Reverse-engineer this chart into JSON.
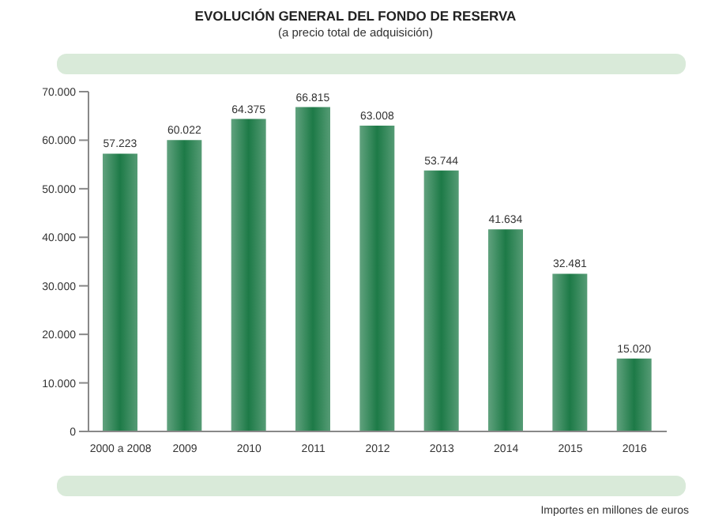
{
  "chart_data": {
    "type": "bar",
    "title": "EVOLUCIÓN GENERAL DEL FONDO DE RESERVA",
    "subtitle": "(a precio total de adquisición)",
    "categories": [
      "2000 a 2008",
      "2009",
      "2010",
      "2011",
      "2012",
      "2013",
      "2014",
      "2015",
      "2016"
    ],
    "values": [
      57223,
      60022,
      64375,
      66815,
      63008,
      53744,
      41634,
      32481,
      15020
    ],
    "value_labels": [
      "57.223",
      "60.022",
      "64.375",
      "66.815",
      "63.008",
      "53.744",
      "41.634",
      "32.481",
      "15.020"
    ],
    "color": "#1d7a47",
    "ylim": [
      0,
      70000
    ],
    "yticks": [
      {
        "value": 0,
        "label": "0"
      },
      {
        "value": 10000,
        "label": "10.000"
      },
      {
        "value": 20000,
        "label": "20.000"
      },
      {
        "value": 30000,
        "label": "30.000"
      },
      {
        "value": 40000,
        "label": "40.000"
      },
      {
        "value": 50000,
        "label": "50.000"
      },
      {
        "value": 60000,
        "label": "60.000"
      },
      {
        "value": 70000,
        "label": "70.000"
      }
    ],
    "annotations": [
      "Importes en millones de euros"
    ]
  }
}
